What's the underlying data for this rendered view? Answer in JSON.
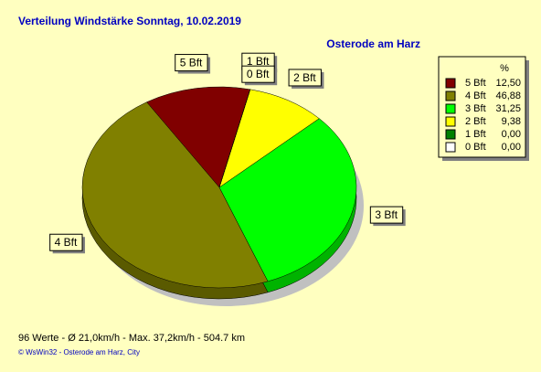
{
  "chart_data": {
    "type": "pie",
    "title": "Verteilung Windstärke  Sonntag, 10.02.2019",
    "subtitle": "Osterode am Harz",
    "legend_header": "%",
    "categories": [
      "5 Bft",
      "4 Bft",
      "3 Bft",
      "2 Bft",
      "1 Bft",
      "0 Bft"
    ],
    "values": [
      12.5,
      46.88,
      31.25,
      9.38,
      0,
      0
    ],
    "value_labels": [
      "12,50",
      "46,88",
      "31,25",
      "9,38",
      "0,00",
      "0,00"
    ],
    "colors": [
      "#800000",
      "#808000",
      "#00ff00",
      "#ffff00",
      "#008000",
      "#ffffff"
    ],
    "legend": "upper right",
    "footer": "96 Werte   -   Ø 21,0km/h   -   Max. 37,2km/h   -   504.7 km",
    "credit": "© WsWin32  -  Osterode am Harz, City"
  }
}
